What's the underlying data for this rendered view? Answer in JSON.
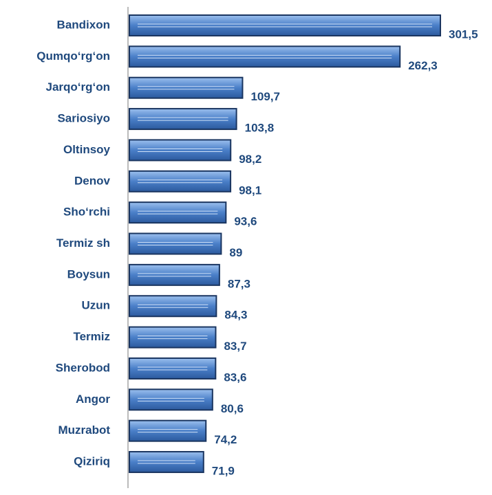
{
  "chart_data": {
    "type": "bar",
    "orientation": "horizontal",
    "categories": [
      "Bandixon",
      "Qumqo‘rg‘on",
      "Jarqo‘rg‘on",
      "Sariosiyo",
      "Oltinsoy",
      "Denov",
      "Sho‘rchi",
      "Termiz sh",
      "Boysun",
      "Uzun",
      "Termiz",
      "Sherobod",
      "Angor",
      "Muzrabot",
      "Qiziriq"
    ],
    "values": [
      301.5,
      262.3,
      109.7,
      103.8,
      98.2,
      98.1,
      93.6,
      89,
      87.3,
      84.3,
      83.7,
      83.6,
      80.6,
      74.2,
      71.9
    ],
    "value_labels": [
      "301,5",
      "262,3",
      "109,7",
      "103,8",
      "98,2",
      "98,1",
      "93,6",
      "89",
      "87,3",
      "84,3",
      "83,7",
      "83,6",
      "80,6",
      "74,2",
      "71,9"
    ],
    "color": "#4a7fc8"
  }
}
